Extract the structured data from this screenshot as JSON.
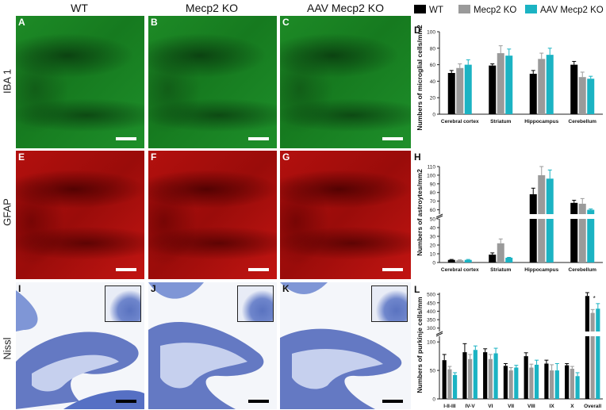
{
  "columns": [
    "WT",
    "Mecp2 KO",
    "AAV Mecp2 KO"
  ],
  "rows": [
    "IBA 1",
    "GFAP",
    "Nissl"
  ],
  "panel_labels": [
    "A",
    "B",
    "C",
    "D",
    "E",
    "F",
    "G",
    "H",
    "I",
    "J",
    "K",
    "L"
  ],
  "legend": [
    "WT",
    "Mecp2 KO",
    "AAV Mecp2 KO"
  ],
  "colors": {
    "wt": "#000000",
    "ko": "#9a9a9a",
    "aav": "#1bb3c3"
  },
  "chart_data": [
    {
      "type": "bar",
      "panel": "D",
      "ylabel": "Numbers of microglial cells/mm2",
      "categories": [
        "Cerebral cortex",
        "Striatum",
        "Hippocampus",
        "Cerebellum"
      ],
      "ylim": [
        0,
        100
      ],
      "yticks": [
        0,
        20,
        40,
        60,
        80,
        100
      ],
      "series": [
        {
          "name": "WT",
          "values": [
            50,
            59,
            49,
            60
          ],
          "err": [
            3,
            2,
            4,
            4
          ]
        },
        {
          "name": "Mecp2 KO",
          "values": [
            56,
            74,
            67,
            45
          ],
          "err": [
            5,
            9,
            7,
            6
          ]
        },
        {
          "name": "AAV Mecp2 KO",
          "values": [
            60,
            71,
            72,
            43
          ],
          "err": [
            6,
            8,
            8,
            3
          ]
        }
      ]
    },
    {
      "type": "bar",
      "panel": "H",
      "ylabel": "Numbers of astroytes/mm2",
      "categories": [
        "Cerebral cortex",
        "Striatum",
        "Hippocampus",
        "Cerebellum"
      ],
      "ylim": [
        0,
        110
      ],
      "yticks_lower": [
        0,
        10,
        20,
        30,
        40,
        50
      ],
      "yticks_upper": [
        60,
        70,
        80,
        90,
        100,
        110
      ],
      "series": [
        {
          "name": "WT",
          "values": [
            3,
            9,
            78,
            68
          ],
          "err": [
            0.5,
            2,
            7,
            3
          ]
        },
        {
          "name": "Mecp2 KO",
          "values": [
            2.5,
            22,
            100,
            67
          ],
          "err": [
            0.5,
            5,
            12,
            6
          ]
        },
        {
          "name": "AAV Mecp2 KO",
          "values": [
            3,
            5.5,
            96,
            60
          ],
          "err": [
            0.5,
            0.4,
            10,
            1
          ]
        }
      ]
    },
    {
      "type": "bar",
      "panel": "L",
      "ylabel": "Numbers of purkinje cells/mm",
      "categories": [
        "I-II-III",
        "IV-V",
        "VI",
        "VII",
        "VIII",
        "IX",
        "X",
        "Overall"
      ],
      "yticks_lower": [
        0,
        50,
        100
      ],
      "yticks_upper": [
        300,
        350,
        400,
        450,
        500
      ],
      "series": [
        {
          "name": "WT",
          "values": [
            68,
            82,
            82,
            58,
            75,
            62,
            59,
            490
          ],
          "err": [
            10,
            15,
            6,
            4,
            6,
            6,
            3,
            25
          ]
        },
        {
          "name": "Mecp2 KO",
          "values": [
            52,
            70,
            70,
            50,
            55,
            50,
            53,
            390
          ],
          "err": [
            5,
            8,
            8,
            5,
            6,
            10,
            4,
            20
          ]
        },
        {
          "name": "AAV Mecp2 KO",
          "values": [
            42,
            86,
            80,
            55,
            60,
            50,
            40,
            415
          ],
          "err": [
            4,
            7,
            9,
            4,
            8,
            12,
            6,
            30
          ]
        }
      ],
      "annotations": [
        "*"
      ]
    }
  ]
}
